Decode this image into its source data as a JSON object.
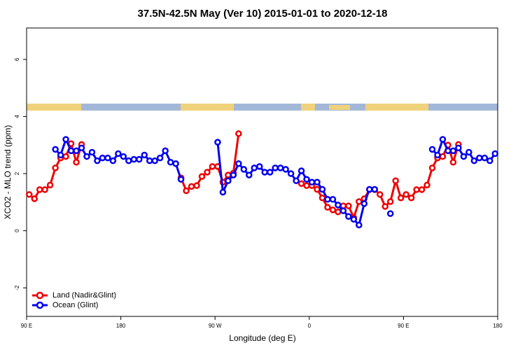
{
  "chart_data": {
    "type": "line",
    "title": "37.5N-42.5N May (Ver 10)   2015-01-01 to 2020-12-18",
    "x_label": "Longitude (deg E)",
    "y_label": "XCO2 - MLO trend (ppm)",
    "xlim": [
      90,
      540
    ],
    "xticks": [
      {
        "value": 90,
        "label": "90 E"
      },
      180,
      {
        "value": 270,
        "label": "90 W"
      },
      {
        "value": 360,
        "label": "0"
      },
      {
        "value": 450,
        "label": "90 E"
      },
      {
        "value": 540,
        "label": "180"
      }
    ],
    "ylim": [
      -3,
      7.1
    ],
    "yticks": [
      -2,
      0,
      2,
      4,
      6
    ],
    "legend": "bottom-left",
    "x": [
      92.5,
      97.5,
      102.5,
      107.5,
      112.5,
      117.5,
      122.5,
      127.5,
      132.5,
      137.5,
      142.5,
      147.5,
      152.5,
      157.5,
      162.5,
      167.5,
      172.5,
      177.5,
      182.5,
      187.5,
      192.5,
      197.5,
      202.5,
      207.5,
      212.5,
      217.5,
      222.5,
      227.5,
      232.5,
      237.5,
      242.5,
      247.5,
      252.5,
      257.5,
      262.5,
      267.5,
      272.5,
      277.5,
      282.5,
      287.5,
      292.5,
      297.5,
      302.5,
      307.5,
      312.5,
      317.5,
      322.5,
      327.5,
      332.5,
      337.5,
      342.5,
      347.5,
      352.5,
      357.5,
      362.5,
      367.5,
      372.5,
      377.5,
      382.5,
      387.5,
      392.5,
      397.5,
      402.5,
      407.5,
      412.5,
      417.5,
      422.5,
      427.5,
      432.5,
      437.5,
      442.5,
      447.5,
      452.5,
      457.5,
      462.5,
      467.5,
      472.5,
      477.5,
      482.5,
      487.5,
      492.5,
      497.5,
      502.5,
      507.5,
      512.5,
      517.5,
      522.5,
      527.5,
      532.5,
      537.5
    ],
    "series": [
      {
        "name": "Land (Nadir&Glint)",
        "color": "#ee0000",
        "values": [
          1.27,
          1.12,
          1.44,
          1.44,
          1.6,
          2.2,
          2.55,
          2.6,
          3.05,
          2.4,
          3.02,
          null,
          null,
          null,
          null,
          null,
          null,
          null,
          null,
          null,
          null,
          null,
          null,
          null,
          null,
          null,
          null,
          null,
          null,
          1.85,
          1.4,
          1.55,
          1.58,
          1.9,
          2.05,
          2.25,
          2.25,
          1.7,
          1.95,
          2.02,
          3.4,
          null,
          null,
          null,
          null,
          null,
          null,
          null,
          null,
          null,
          null,
          null,
          1.65,
          1.58,
          1.58,
          1.45,
          1.15,
          0.82,
          0.73,
          0.66,
          0.87,
          0.87,
          0.46,
          1.02,
          1.12,
          1.44,
          1.44,
          1.27,
          0.85,
          1.02,
          1.75,
          1.15,
          1.27,
          1.15,
          1.44,
          1.44,
          1.6,
          2.2,
          2.55,
          2.6,
          3.0,
          2.4,
          3.02,
          null,
          null,
          null,
          null,
          null,
          null,
          null
        ]
      },
      {
        "name": "Ocean (Glint)",
        "color": "#0000ee",
        "values": [
          null,
          null,
          null,
          null,
          null,
          2.85,
          2.65,
          3.2,
          2.8,
          2.8,
          2.9,
          2.6,
          2.75,
          2.45,
          2.55,
          2.55,
          2.45,
          2.7,
          2.6,
          2.45,
          2.5,
          2.5,
          2.65,
          2.45,
          2.45,
          2.55,
          2.8,
          2.4,
          2.35,
          1.8,
          null,
          null,
          null,
          null,
          null,
          null,
          3.1,
          1.35,
          1.75,
          1.95,
          2.35,
          2.15,
          1.95,
          2.2,
          2.25,
          2.05,
          2.05,
          2.2,
          2.2,
          2.15,
          2.0,
          1.75,
          2.1,
          1.8,
          1.7,
          1.7,
          1.45,
          1.1,
          1.1,
          0.9,
          0.7,
          0.5,
          0.4,
          0.2,
          0.95,
          1.45,
          1.45,
          null,
          null,
          0.6,
          null,
          null,
          null,
          null,
          null,
          null,
          null,
          2.85,
          2.65,
          3.2,
          2.8,
          2.8,
          2.9,
          2.6,
          2.75,
          2.45,
          2.55,
          2.55,
          2.45,
          2.7
        ]
      }
    ]
  }
}
